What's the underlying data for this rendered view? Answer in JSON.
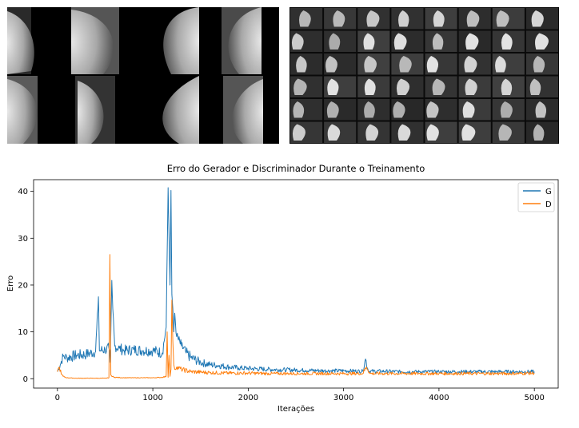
{
  "chart_data": {
    "type": "line",
    "title": "Erro do Gerador e Discriminador Durante o Treinamento",
    "xlabel": "Iterações",
    "ylabel": "Erro",
    "xlim": [
      -250,
      5250
    ],
    "ylim": [
      -2,
      42.5
    ],
    "xticks": [
      0,
      1000,
      2000,
      3000,
      4000,
      5000
    ],
    "yticks": [
      0,
      10,
      20,
      30,
      40
    ],
    "legend_position": "top-right",
    "grid": false,
    "series": [
      {
        "name": "G",
        "color": "#1f77b4",
        "x": [
          0,
          30,
          60,
          100,
          200,
          300,
          400,
          430,
          440,
          500,
          540,
          555,
          570,
          580,
          600,
          650,
          700,
          800,
          900,
          1000,
          1100,
          1140,
          1160,
          1170,
          1180,
          1190,
          1200,
          1210,
          1220,
          1230,
          1250,
          1300,
          1350,
          1400,
          1500,
          1600,
          1700,
          1800,
          1900,
          2000,
          2200,
          2400,
          2600,
          2800,
          3000,
          3200,
          3230,
          3260,
          3400,
          3600,
          3800,
          4000,
          4200,
          4400,
          4600,
          4800,
          5000
        ],
        "values": [
          1.5,
          3,
          4.8,
          4.5,
          5.0,
          5.2,
          5.8,
          17.5,
          6.0,
          6.2,
          6.5,
          3.5,
          21.0,
          15.0,
          7.0,
          6.5,
          6.0,
          6.2,
          6.0,
          6.0,
          5.5,
          11.0,
          40.8,
          30.0,
          20.0,
          40.2,
          18.0,
          15.0,
          10.0,
          14.0,
          9.0,
          7.0,
          5.5,
          4.5,
          3.5,
          3.0,
          2.8,
          2.5,
          2.3,
          2.2,
          2.0,
          1.9,
          1.8,
          1.7,
          1.7,
          1.6,
          4.2,
          1.6,
          1.6,
          1.5,
          1.5,
          1.5,
          1.5,
          1.5,
          1.5,
          1.5,
          1.5
        ]
      },
      {
        "name": "D",
        "color": "#ff7f0e",
        "x": [
          0,
          20,
          40,
          60,
          100,
          200,
          300,
          400,
          500,
          540,
          550,
          555,
          560,
          570,
          600,
          700,
          800,
          900,
          1000,
          1100,
          1140,
          1150,
          1160,
          1170,
          1180,
          1190,
          1200,
          1210,
          1220,
          1230,
          1250,
          1300,
          1400,
          1500,
          1600,
          1800,
          2000,
          2200,
          2400,
          2600,
          2800,
          3000,
          3200,
          3240,
          3280,
          3400,
          3600,
          3800,
          4000,
          4200,
          4400,
          4600,
          4800,
          5000
        ],
        "values": [
          1.5,
          2.5,
          1.0,
          0.5,
          0.2,
          0.1,
          0.1,
          0.1,
          0.1,
          0.2,
          26.5,
          14.0,
          0.8,
          0.5,
          0.3,
          0.2,
          0.2,
          0.2,
          0.2,
          0.3,
          0.5,
          10.0,
          0.3,
          5.0,
          0.5,
          2.0,
          16.8,
          8.0,
          3.0,
          2.0,
          2.5,
          2.0,
          1.5,
          1.4,
          1.3,
          1.2,
          1.2,
          1.1,
          1.1,
          1.1,
          1.1,
          1.1,
          1.1,
          2.5,
          1.1,
          1.1,
          1.1,
          1.1,
          1.1,
          1.1,
          1.1,
          1.1,
          1.1,
          1.2
        ]
      }
    ]
  }
}
